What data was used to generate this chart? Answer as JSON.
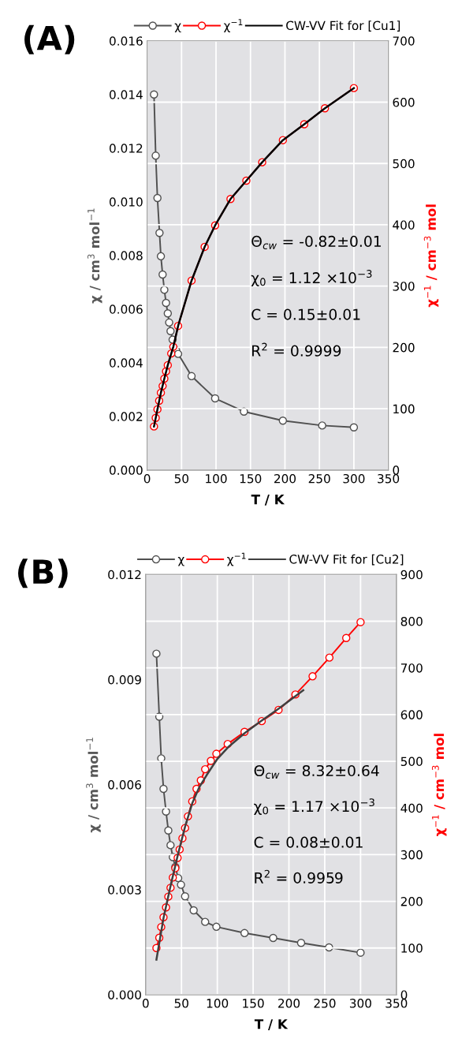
{
  "chart_data": [
    {
      "type": "line",
      "title": "(A)",
      "xlabel": "T / K",
      "ylabel": "χ / cm$^{3}$ mol$^{−1}$",
      "y2label": "χ$^{−1}$ / cm$^{−3}$ mol",
      "xlim": [
        0,
        350
      ],
      "xticks": [
        0,
        50,
        100,
        150,
        200,
        250,
        300,
        350
      ],
      "ylim": [
        0,
        0.016
      ],
      "yticks": [
        {
          "value": 0,
          "label": "0.000"
        },
        {
          "value": 0.002,
          "label": "0.002"
        },
        {
          "value": 0.004,
          "label": "0.004"
        },
        {
          "value": 0.006,
          "label": "0.006"
        },
        {
          "value": 0.008,
          "label": "0.008"
        },
        {
          "value": 0.01,
          "label": "0.010"
        },
        {
          "value": 0.012,
          "label": "0.012"
        },
        {
          "value": 0.014,
          "label": "0.014"
        },
        {
          "value": 0.016,
          "label": "0.016"
        }
      ],
      "y2lim": [
        0,
        700
      ],
      "y2ticks": [
        0,
        100,
        200,
        300,
        400,
        500,
        600,
        700
      ],
      "grid": true,
      "legend": "top",
      "marker": "circle",
      "annotations": [
        "Θ$_{cw}$ = -0.82±0.01",
        "χ$_{0}$ = 1.12 ×10$^{−3}$",
        "C = 0.15±0.01",
        "R$^{2}$ = 0.9999"
      ],
      "series": [
        {
          "name": "χ",
          "color": "#505050",
          "x": [
            10,
            12.5,
            15,
            18,
            20,
            22.5,
            25,
            27.5,
            30,
            32,
            34,
            37,
            42,
            45,
            64.5,
            98.7,
            140.5,
            197,
            254,
            300
          ],
          "values": [
            0.014,
            0.01172,
            0.01014,
            0.00884,
            0.00797,
            0.00729,
            0.00672,
            0.00623,
            0.00584,
            0.0055,
            0.00518,
            0.00486,
            0.00447,
            0.00433,
            0.0035,
            0.00267,
            0.00218,
            0.00184,
            0.00166,
            0.00159
          ]
        },
        {
          "name": "χ$^{−1}$",
          "axis": "y2",
          "color": "#ff0000",
          "x": [
            10,
            12.5,
            15,
            17.5,
            20,
            22.5,
            25,
            27.5,
            30,
            35,
            38,
            45,
            64.5,
            83.5,
            98.7,
            121,
            144,
            167,
            197,
            228,
            258,
            300
          ],
          "values": [
            71,
            85,
            99,
            113,
            126,
            137,
            149,
            161,
            171,
            190,
            201,
            235,
            309,
            364,
            399,
            442,
            472,
            502,
            538,
            564,
            590,
            623
          ]
        },
        {
          "name": "CW-VV Fit for [Cu1]",
          "marker": "none",
          "axis": "y2",
          "color": "#000000",
          "x": [
            10,
            15,
            20,
            25,
            30,
            38,
            45,
            64.5,
            83.5,
            98.7,
            121,
            144,
            167,
            197,
            228,
            258,
            300
          ],
          "values": [
            71,
            99,
            126,
            149,
            171,
            201,
            235,
            309,
            364,
            399,
            442,
            472,
            502,
            538,
            564,
            590,
            623
          ]
        }
      ]
    },
    {
      "type": "line",
      "title": "(B)",
      "xlabel": "T / K",
      "ylabel": "χ / cm$^{3}$ mol$^{−1}$",
      "y2label": "χ$^{−1}$ / cm$^{−3}$ mol",
      "xlim": [
        0,
        350
      ],
      "xticks": [
        0,
        50,
        100,
        150,
        200,
        250,
        300,
        350
      ],
      "ylim": [
        0,
        0.012
      ],
      "yticks": [
        {
          "value": 0,
          "label": "0.000"
        },
        {
          "value": 0.003,
          "label": "0.003"
        },
        {
          "value": 0.006,
          "label": "0.006"
        },
        {
          "value": 0.009,
          "label": "0.009"
        },
        {
          "value": 0.012,
          "label": "0.012"
        }
      ],
      "y2lim": [
        0,
        900
      ],
      "y2ticks": [
        0,
        100,
        200,
        300,
        400,
        500,
        600,
        700,
        800,
        900
      ],
      "grid": true,
      "legend": "top",
      "marker": "circle",
      "annotations": [
        "Θ$_{cw}$ = 8.32±0.64",
        "χ$_{0}$ = 1.17 ×10$^{−3}$",
        "C = 0.08±0.01",
        "R$^{2}$ = 0.9959"
      ],
      "series": [
        {
          "name": "χ",
          "color": "#505050",
          "x": [
            15,
            19,
            21.7,
            24.9,
            28.4,
            31.6,
            34.7,
            37.9,
            41.4,
            45.4,
            49.3,
            55,
            67,
            83,
            98.7,
            138,
            178,
            217,
            256,
            300
          ],
          "values": [
            0.00974,
            0.00794,
            0.00675,
            0.00588,
            0.00523,
            0.00469,
            0.00427,
            0.00393,
            0.00365,
            0.00333,
            0.00314,
            0.00281,
            0.00241,
            0.00208,
            0.00194,
            0.00176,
            0.00162,
            0.00148,
            0.00135,
            0.0012
          ]
        },
        {
          "name": "χ$^{−1}$",
          "axis": "y2",
          "color": "#ff0000",
          "x": [
            15,
            19,
            21.7,
            24.9,
            28.4,
            31.6,
            34.7,
            37.9,
            41.4,
            44.6,
            47.4,
            51.3,
            55,
            59,
            65,
            71,
            77,
            83,
            91,
            98.7,
            114.5,
            138,
            162,
            185.5,
            209,
            233,
            256.5,
            280,
            300
          ],
          "values": [
            100,
            122,
            145,
            166,
            187,
            210,
            229,
            251,
            271,
            293,
            311,
            335,
            357,
            382,
            414,
            441,
            459,
            483,
            501,
            516,
            537,
            563,
            586,
            610,
            643,
            682,
            722,
            764,
            798
          ]
        },
        {
          "name": "CW-VV Fit for [Cu2]",
          "marker": "none",
          "axis": "y2",
          "color": "#404040",
          "x": [
            15,
            25,
            35,
            45,
            55,
            65,
            75,
            85,
            100,
            115,
            138,
            160,
            185,
            205,
            220
          ],
          "values": [
            75,
            165,
            235,
            300,
            360,
            410,
            445,
            470,
            505,
            530,
            560,
            585,
            612,
            635,
            652
          ]
        }
      ]
    }
  ]
}
